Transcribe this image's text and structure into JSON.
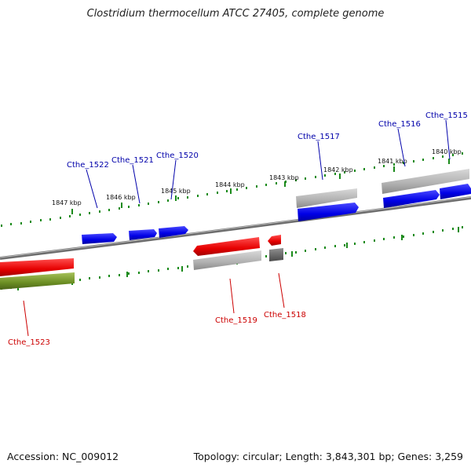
{
  "title": "Clostridium thermocellum ATCC 27405, complete genome",
  "footer": {
    "accession": "Accession: NC_009012",
    "summary": "Topology: circular; Length: 3,843,301 bp; Genes: 3,259"
  },
  "colors": {
    "forward_gene": "#1010e0",
    "reverse_gene": "#e01010",
    "rrna_gene": "#6b8e23",
    "pseudo_gene": "#a8a8a8",
    "other_gene": "#606060",
    "scale_ticks": "#1a8a1a",
    "backbone": "#808080",
    "forward_label": "#0000aa",
    "reverse_label": "#cc0000"
  },
  "scale_labels": [
    "1847 kbp",
    "1846 kbp",
    "1845 kbp",
    "1844 kbp",
    "1843 kbp",
    "1842 kbp",
    "1841 kbp",
    "1840 kbp"
  ],
  "gene_labels": {
    "forward": [
      "Cthe_1522",
      "Cthe_1521",
      "Cthe_1520",
      "Cthe_1517",
      "Cthe_1516",
      "Cthe_1515"
    ],
    "reverse": [
      "Cthe_1523",
      "Cthe_1519",
      "Cthe_1518"
    ]
  }
}
